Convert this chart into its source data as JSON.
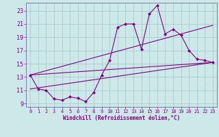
{
  "title": "",
  "xlabel": "Windchill (Refroidissement éolien,°C)",
  "ylabel": "",
  "bg_color": "#cce8e8",
  "line_color": "#800080",
  "grid_color": "#aacccc",
  "spine_color": "#7a7aaa",
  "xlim": [
    -0.5,
    23.5
  ],
  "ylim": [
    8.5,
    24.2
  ],
  "xticks": [
    0,
    1,
    2,
    3,
    4,
    5,
    6,
    7,
    8,
    9,
    10,
    11,
    12,
    13,
    14,
    15,
    16,
    17,
    18,
    19,
    20,
    21,
    22,
    23
  ],
  "yticks": [
    9,
    11,
    13,
    15,
    17,
    19,
    21,
    23
  ],
  "line1_x": [
    0,
    1,
    2,
    3,
    4,
    5,
    6,
    7,
    8,
    9,
    10,
    11,
    12,
    13,
    14,
    15,
    16,
    17,
    18,
    19,
    20,
    21,
    22,
    23
  ],
  "line1_y": [
    13.3,
    11.2,
    11.0,
    9.7,
    9.5,
    10.0,
    9.8,
    9.3,
    10.7,
    13.3,
    15.5,
    20.5,
    21.0,
    21.0,
    17.2,
    22.5,
    23.8,
    19.5,
    20.2,
    19.3,
    17.0,
    15.7,
    15.5,
    15.2
  ],
  "line2_x": [
    0,
    23
  ],
  "line2_y": [
    13.3,
    15.2
  ],
  "line3_x": [
    0,
    23
  ],
  "line3_y": [
    11.2,
    15.2
  ],
  "line4_x": [
    0,
    23
  ],
  "line4_y": [
    13.3,
    20.8
  ]
}
